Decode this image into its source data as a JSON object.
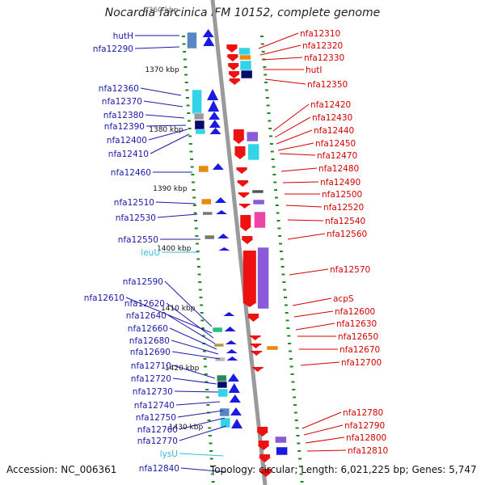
{
  "title": "Nocardia farcinica IFM 10152, complete genome",
  "top_ruler_label": "1360 kbp",
  "footer": {
    "accession": "Accession: NC_006361",
    "summary": "Topology: circular; Length: 6,021,225 bp; Genes: 5,747"
  },
  "colors": {
    "left_label": "#1a1aa8",
    "right_label": "#d40000",
    "rna_label": "#33bbdd",
    "ruler": "#1e8a1e",
    "backbone": "#9a9a9a"
  },
  "ruler_labels": [
    "1370 kbp",
    "1380 kbp",
    "1390 kbp",
    "1400 kbp",
    "1410 kbp",
    "1420 kbp",
    "1430 kbp"
  ],
  "left_genes": [
    "hutH",
    "nfa12290",
    "nfa12360",
    "nfa12370",
    "nfa12380",
    "nfa12390",
    "nfa12400",
    "nfa12410",
    "nfa12460",
    "nfa12510",
    "nfa12530",
    "nfa12550",
    "leuU",
    "nfa12590",
    "nfa12610",
    "nfa12620",
    "nfa12640",
    "nfa12660",
    "nfa12680",
    "nfa12690",
    "nfa12710",
    "nfa12720",
    "nfa12730",
    "nfa12740",
    "nfa12750",
    "nfa12760",
    "nfa12770",
    "lysU",
    "nfa12840"
  ],
  "right_genes": [
    "nfa12310",
    "nfa12320",
    "nfa12330",
    "hutI",
    "nfa12350",
    "nfa12420",
    "nfa12430",
    "nfa12440",
    "nfa12450",
    "nfa12470",
    "nfa12480",
    "nfa12490",
    "nfa12500",
    "nfa12520",
    "nfa12540",
    "nfa12560",
    "nfa12570",
    "acpS",
    "nfa12600",
    "nfa12630",
    "nfa12650",
    "nfa12670",
    "nfa12700",
    "nfa12780",
    "nfa12790",
    "nfa12800",
    "nfa12810"
  ]
}
